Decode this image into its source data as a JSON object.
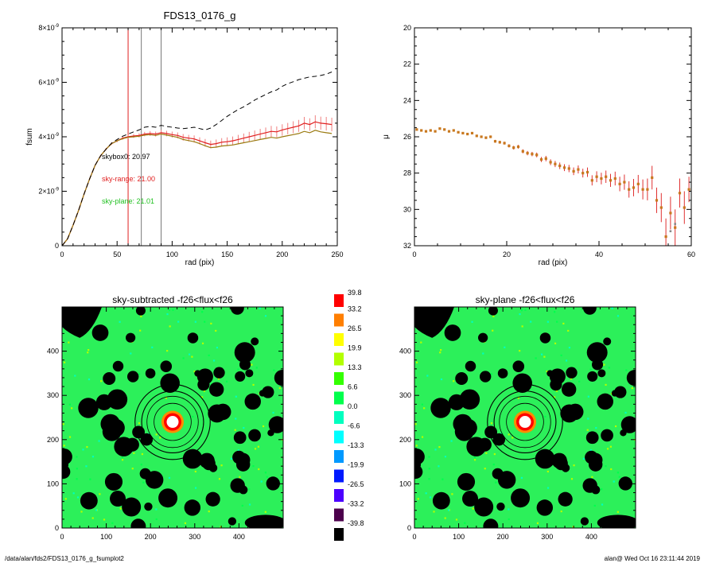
{
  "plot1": {
    "title": "FDS13_0176_g",
    "xlabel": "rad (pix)",
    "ylabel": "fsum",
    "xlim": [
      0,
      250
    ],
    "ylim": [
      0,
      8e-09
    ],
    "x_ticks": [
      "0",
      "50",
      "100",
      "150",
      "200",
      "250"
    ],
    "y_tick_mantissas": [
      "0",
      "2",
      "4",
      "6",
      "8"
    ],
    "y_tick_base": "×10",
    "y_tick_exp": "-9",
    "annotations": [
      {
        "text": "skybox0: 20.97",
        "color": "#000000"
      },
      {
        "text": "sky-range: 21.00",
        "color": "#e02020"
      },
      {
        "text": "sky-plane: 21.01",
        "color": "#20c020"
      }
    ],
    "vlines": [
      {
        "x": 60,
        "color": "#e02020"
      },
      {
        "x": 72,
        "color": "#777777"
      },
      {
        "x": 90,
        "color": "#777777"
      }
    ]
  },
  "plot2": {
    "xlabel": "rad (pix)",
    "ylabel": "μ",
    "xlim": [
      0,
      60
    ],
    "ylim": [
      32,
      20
    ],
    "x_ticks": [
      "0",
      "20",
      "40",
      "60"
    ],
    "y_ticks": [
      "20",
      "22",
      "24",
      "26",
      "28",
      "30",
      "32"
    ]
  },
  "panel1": {
    "title": "sky-subtracted -f26<flux<f26",
    "x_ticks": [
      "0",
      "100",
      "200",
      "300",
      "400"
    ],
    "y_ticks": [
      "0",
      "100",
      "200",
      "300",
      "400"
    ]
  },
  "panel2": {
    "title": "sky-plane -f26<flux<f26",
    "x_ticks": [
      "0",
      "100",
      "200",
      "300",
      "400"
    ],
    "y_ticks": [
      "0",
      "100",
      "200",
      "300",
      "400"
    ]
  },
  "colorbar": {
    "labels": [
      "39.8",
      "33.2",
      "26.5",
      "19.9",
      "13.3",
      "6.6",
      "0.0",
      "-6.6",
      "-13.3",
      "-19.9",
      "-26.5",
      "-33.2",
      "-39.8"
    ],
    "colors": [
      "#ff0000",
      "#ff7f00",
      "#ffff00",
      "#b2ff00",
      "#33ff00",
      "#00ff4c",
      "#00ffbf",
      "#00ffff",
      "#0099ff",
      "#0019ff",
      "#4c00ff",
      "#4c004c",
      "#000000"
    ]
  },
  "footer": {
    "left": "/data/alan/fds2/FDS13_0176_g_fsumplot2",
    "right": "alan@  Wed Oct 16 23:11:44 2019"
  },
  "chart_data": [
    {
      "type": "line",
      "title": "FDS13_0176_g",
      "xlabel": "rad (pix)",
      "ylabel": "fsum",
      "xlim": [
        0,
        250
      ],
      "ylim": [
        0,
        8e-09
      ],
      "grid": false,
      "series": [
        {
          "style": "solid, red with error bars",
          "x": [
            0,
            5,
            10,
            15,
            20,
            25,
            30,
            35,
            40,
            45,
            50,
            55,
            60,
            65,
            70,
            75,
            80,
            85,
            90,
            95,
            100,
            105,
            110,
            115,
            120,
            125,
            130,
            135,
            140,
            145,
            150,
            155,
            160,
            165,
            170,
            175,
            180,
            185,
            190,
            195,
            200,
            205,
            210,
            215,
            220,
            225,
            230,
            235,
            240,
            245
          ],
          "values": [
            0,
            2.5e-10,
            7.5e-10,
            1.3e-09,
            1.9e-09,
            2.45e-09,
            2.95e-09,
            3.3e-09,
            3.55e-09,
            3.75e-09,
            3.85e-09,
            3.95e-09,
            4e-09,
            4.03e-09,
            4.05e-09,
            4.1e-09,
            4.12e-09,
            4.1e-09,
            4.15e-09,
            4.12e-09,
            4.08e-09,
            4.05e-09,
            3.98e-09,
            3.95e-09,
            3.92e-09,
            3.85e-09,
            3.78e-09,
            3.72e-09,
            3.75e-09,
            3.8e-09,
            3.82e-09,
            3.85e-09,
            3.9e-09,
            3.95e-09,
            4e-09,
            4.05e-09,
            4.1e-09,
            4.15e-09,
            4.2e-09,
            4.18e-09,
            4.25e-09,
            4.3e-09,
            4.35e-09,
            4.4e-09,
            4.5e-09,
            4.45e-09,
            4.55e-09,
            4.5e-09,
            4.48e-09,
            4.45e-09
          ],
          "errors": [
            0,
            1e-11,
            1e-11,
            2e-11,
            2e-11,
            3e-11,
            3e-11,
            4e-11,
            4e-11,
            5e-11,
            5e-11,
            6e-11,
            7e-11,
            7e-11,
            8e-11,
            8e-11,
            9e-11,
            9e-11,
            1e-10,
            1e-10,
            1.1e-10,
            1.1e-10,
            1.2e-10,
            1.2e-10,
            1.3e-10,
            1.3e-10,
            1.4e-10,
            1.4e-10,
            1.5e-10,
            1.5e-10,
            1.6e-10,
            1.6e-10,
            1.7e-10,
            1.7e-10,
            1.8e-10,
            1.8e-10,
            1.9e-10,
            1.9e-10,
            2e-10,
            2e-10,
            2.1e-10,
            2.1e-10,
            2.2e-10,
            2.2e-10,
            2.3e-10,
            2.3e-10,
            2.4e-10,
            2.4e-10,
            2.5e-10,
            2.5e-10
          ]
        },
        {
          "style": "solid, green",
          "x": [
            0,
            5,
            10,
            15,
            20,
            25,
            30,
            35,
            40,
            45,
            50,
            55,
            60,
            65,
            70,
            75,
            80,
            85,
            90,
            95,
            100,
            105,
            110,
            115,
            120,
            125,
            130,
            135,
            140,
            145,
            150,
            155,
            160,
            165,
            170,
            175,
            180,
            185,
            190,
            195,
            200,
            205,
            210,
            215,
            220,
            225,
            230,
            235,
            240,
            245
          ],
          "values": [
            0,
            2.5e-10,
            7.5e-10,
            1.3e-09,
            1.9e-09,
            2.45e-09,
            2.95e-09,
            3.3e-09,
            3.55e-09,
            3.75e-09,
            3.85e-09,
            3.93e-09,
            3.98e-09,
            4e-09,
            4.02e-09,
            4.06e-09,
            4.08e-09,
            4.05e-09,
            4.1e-09,
            4.06e-09,
            4.02e-09,
            3.98e-09,
            3.9e-09,
            3.86e-09,
            3.82e-09,
            3.75e-09,
            3.67e-09,
            3.6e-09,
            3.62e-09,
            3.66e-09,
            3.68e-09,
            3.7e-09,
            3.74e-09,
            3.78e-09,
            3.82e-09,
            3.86e-09,
            3.9e-09,
            3.94e-09,
            3.98e-09,
            3.95e-09,
            4e-09,
            4.04e-09,
            4.08e-09,
            4.12e-09,
            4.2e-09,
            4.15e-09,
            4.24e-09,
            4.18e-09,
            4.15e-09,
            4.12e-09
          ]
        },
        {
          "style": "dashed, black",
          "x": [
            0,
            5,
            10,
            15,
            20,
            25,
            30,
            35,
            40,
            45,
            50,
            55,
            60,
            65,
            70,
            75,
            80,
            85,
            90,
            95,
            100,
            105,
            110,
            115,
            120,
            125,
            130,
            135,
            140,
            145,
            150,
            155,
            160,
            165,
            170,
            175,
            180,
            185,
            190,
            195,
            200,
            205,
            210,
            215,
            220,
            225,
            230,
            235,
            240,
            245
          ],
          "values": [
            0,
            2.5e-10,
            7.5e-10,
            1.3e-09,
            1.9e-09,
            2.45e-09,
            2.95e-09,
            3.3e-09,
            3.55e-09,
            3.77e-09,
            3.9e-09,
            4.02e-09,
            4.1e-09,
            4.18e-09,
            4.25e-09,
            4.35e-09,
            4.38e-09,
            4.35e-09,
            4.42e-09,
            4.38e-09,
            4.35e-09,
            4.32e-09,
            4.3e-09,
            4.32e-09,
            4.35e-09,
            4.3e-09,
            4.25e-09,
            4.32e-09,
            4.45e-09,
            4.6e-09,
            4.75e-09,
            4.88e-09,
            5e-09,
            5.1e-09,
            5.22e-09,
            5.35e-09,
            5.45e-09,
            5.55e-09,
            5.65e-09,
            5.72e-09,
            5.85e-09,
            5.95e-09,
            6.02e-09,
            6.1e-09,
            6.15e-09,
            6.2e-09,
            6.22e-09,
            6.25e-09,
            6.3e-09,
            6.38e-09
          ]
        }
      ]
    },
    {
      "type": "scatter",
      "xlabel": "rad (pix)",
      "ylabel": "μ",
      "xlim": [
        0,
        60
      ],
      "ylim": [
        32,
        20
      ],
      "grid": false,
      "series": [
        {
          "style": "orange points with red error bars",
          "x": [
            0.5,
            1.5,
            2.5,
            3.5,
            4.5,
            5.5,
            6.5,
            7.5,
            8.5,
            9.5,
            10.5,
            11.5,
            12.5,
            13.5,
            14.5,
            15.5,
            16.5,
            17.5,
            18.5,
            19.5,
            20.5,
            21.5,
            22.5,
            23.5,
            24.5,
            25.5,
            26.5,
            27.5,
            28.5,
            29.5,
            30.5,
            31.5,
            32.5,
            33.5,
            34.5,
            35.5,
            36.5,
            37.5,
            38.5,
            39.5,
            40.5,
            41.5,
            42.5,
            43.5,
            44.5,
            45.5,
            46.5,
            47.5,
            48.5,
            49.5,
            50.5,
            51.5,
            52.5,
            53.5,
            54.5,
            55.5,
            56.5,
            57.5,
            58.5,
            59.5
          ],
          "values": [
            25.6,
            25.65,
            25.7,
            25.65,
            25.7,
            25.55,
            25.6,
            25.7,
            25.65,
            25.75,
            25.8,
            25.85,
            25.8,
            25.95,
            26.0,
            26.05,
            26.0,
            26.25,
            26.3,
            26.35,
            26.5,
            26.6,
            26.55,
            26.8,
            26.9,
            26.95,
            27.0,
            27.25,
            27.2,
            27.4,
            27.5,
            27.6,
            27.7,
            27.75,
            27.9,
            27.8,
            28.0,
            27.95,
            28.4,
            28.2,
            28.3,
            28.2,
            28.4,
            28.3,
            28.6,
            28.5,
            28.9,
            28.8,
            28.6,
            28.9,
            28.9,
            28.25,
            29.5,
            29.9,
            31.5,
            30.2,
            31.0,
            29.1,
            29.9,
            28.9
          ],
          "errors": [
            0.03,
            0.03,
            0.03,
            0.03,
            0.03,
            0.04,
            0.04,
            0.04,
            0.04,
            0.05,
            0.05,
            0.05,
            0.06,
            0.06,
            0.06,
            0.07,
            0.07,
            0.08,
            0.08,
            0.08,
            0.09,
            0.1,
            0.1,
            0.11,
            0.12,
            0.12,
            0.13,
            0.14,
            0.15,
            0.16,
            0.17,
            0.18,
            0.19,
            0.2,
            0.21,
            0.22,
            0.24,
            0.26,
            0.28,
            0.3,
            0.32,
            0.34,
            0.36,
            0.38,
            0.4,
            0.42,
            0.45,
            0.48,
            0.5,
            0.55,
            0.6,
            0.65,
            0.7,
            0.8,
            1.0,
            0.9,
            1.0,
            0.8,
            0.9,
            0.7
          ]
        },
        {
          "style": "grey points",
          "x": [
            55.5,
            56.5
          ],
          "values": [
            31.2,
            30.8
          ]
        }
      ]
    },
    {
      "type": "heatmap",
      "title": "sky-subtracted -f26<flux<f26",
      "xlim": [
        0,
        500
      ],
      "ylim": [
        0,
        500
      ],
      "value_range": [
        -39.8,
        39.8
      ],
      "circles_center": [
        250,
        240
      ],
      "circles_radii": [
        85,
        70,
        58,
        42
      ]
    },
    {
      "type": "heatmap",
      "title": "sky-plane -f26<flux<f26",
      "xlim": [
        0,
        500
      ],
      "ylim": [
        0,
        500
      ],
      "value_range": [
        -39.8,
        39.8
      ],
      "circles_center": [
        250,
        240
      ],
      "circles_radii": [
        85,
        70,
        58,
        42
      ]
    }
  ]
}
